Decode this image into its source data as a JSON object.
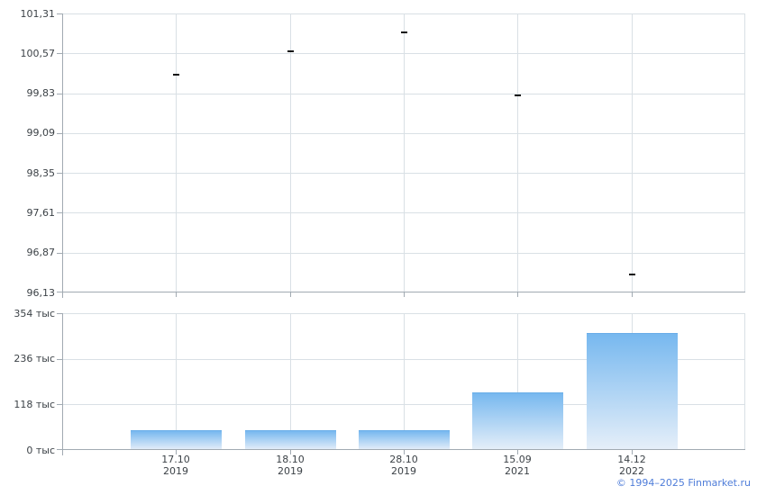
{
  "page": {
    "background": "#ffffff",
    "copyright": "© 1994–2025 Finmarket.ru"
  },
  "colors": {
    "gridline": "#d9e0e5",
    "axis": "#a1aab2",
    "tick_label": "#3c4247",
    "marker": "#111111",
    "bar_gradient_top": "#77b8ef",
    "bar_gradient_bottom": "#e6eff9",
    "bar_top_border": "#69ade8",
    "copyright_link": "#4f7dd9"
  },
  "x_labels": [
    {
      "date": "17.10",
      "year": "2019"
    },
    {
      "date": "18.10",
      "year": "2019"
    },
    {
      "date": "28.10",
      "year": "2019"
    },
    {
      "date": "15.09",
      "year": "2021"
    },
    {
      "date": "14.12",
      "year": "2022"
    }
  ],
  "chart_data": [
    {
      "type": "scatter",
      "name": "price",
      "marker_style": "horizontal-dash",
      "x": [
        "17.10.2019",
        "18.10.2019",
        "28.10.2019",
        "15.09.2021",
        "14.12.2022"
      ],
      "values": [
        100.18,
        100.6,
        100.96,
        99.79,
        96.47
      ],
      "ylim": [
        96.13,
        101.31
      ],
      "ytick_labels": [
        "101,31",
        "100,57",
        "99,83",
        "99,09",
        "98,35",
        "97,61",
        "96,87",
        "96,13"
      ],
      "grid": true,
      "legend": "none",
      "title": ""
    },
    {
      "type": "bar",
      "name": "volume",
      "x": [
        "17.10.2019",
        "18.10.2019",
        "28.10.2019",
        "15.09.2021",
        "14.12.2022"
      ],
      "values": [
        49000,
        49000,
        49000,
        147000,
        300000
      ],
      "values_thousands": [
        49,
        49,
        49,
        147,
        300
      ],
      "values_unit": "тыс",
      "ylim": [
        0,
        354000
      ],
      "ytick_labels": [
        "354 тыс",
        "236 тыс",
        "118 тыс",
        "0 тыс"
      ],
      "grid": true,
      "legend": "none"
    }
  ]
}
